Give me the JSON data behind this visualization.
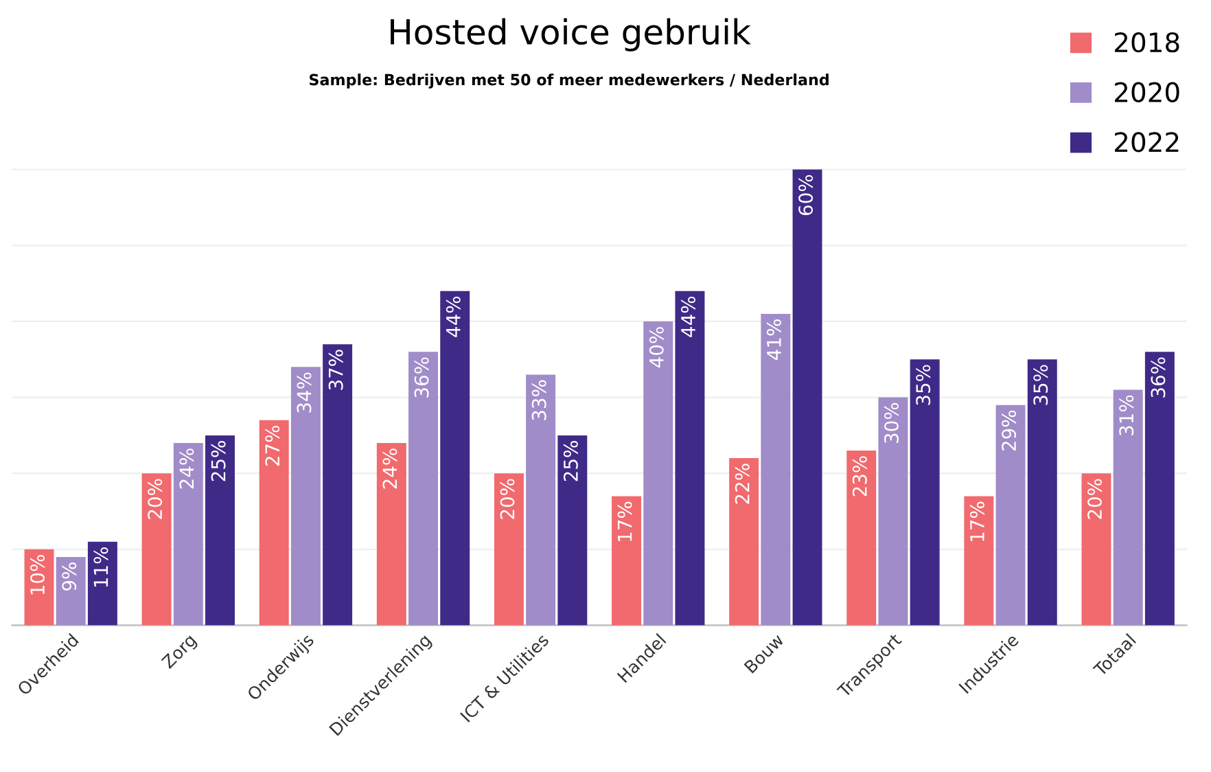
{
  "chart_data": {
    "type": "bar",
    "title": "Hosted voice gebruik",
    "subtitle": "Sample: Bedrijven met 50 of meer medewerkers / Nederland",
    "categories": [
      "Overheid",
      "Zorg",
      "Onderwijs",
      "Dienstverlening",
      "ICT & Utilities",
      "Handel",
      "Bouw",
      "Transport",
      "Industrie",
      "Totaal"
    ],
    "series": [
      {
        "name": "2018",
        "color": "#f06a6e",
        "values": [
          10,
          20,
          27,
          24,
          20,
          17,
          22,
          23,
          17,
          20
        ],
        "value_labels": [
          "10%",
          "20%",
          "27%",
          "24%",
          "20%",
          "17%",
          "22%",
          "23%",
          "17%",
          "20%"
        ]
      },
      {
        "name": "2020",
        "color": "#a08cc8",
        "values": [
          9,
          24,
          34,
          36,
          33,
          40,
          41,
          30,
          29,
          31
        ],
        "value_labels": [
          "9%",
          "24%",
          "34%",
          "36%",
          "33%",
          "40%",
          "41%",
          "30%",
          "29%",
          "31%"
        ]
      },
      {
        "name": "2022",
        "color": "#3f2a88",
        "values": [
          11,
          25,
          37,
          44,
          25,
          44,
          60,
          35,
          35,
          36
        ],
        "value_labels": [
          "11%",
          "25%",
          "37%",
          "44%",
          "25%",
          "44%",
          "60%",
          "35%",
          "35%",
          "36%"
        ]
      }
    ],
    "tick_labels": "x",
    "grid": "y",
    "legend": "top right"
  }
}
